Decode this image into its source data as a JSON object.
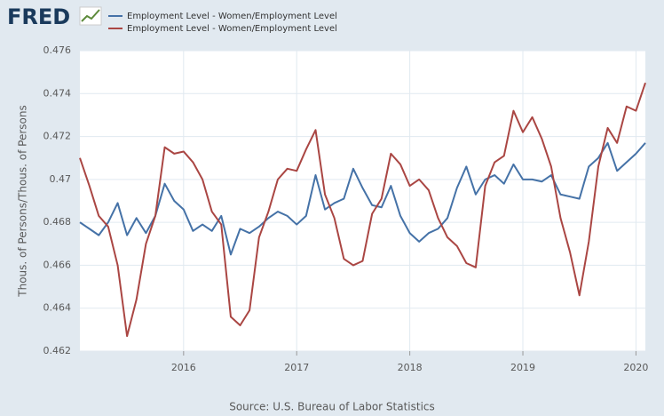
{
  "logo": "FRED",
  "chart_data": {
    "type": "line",
    "y_label": "Thous. of Persons/Thous. of Persons",
    "source": "Source: U.S. Bureau of Labor Statistics",
    "x": [
      2015.083,
      2015.167,
      2015.25,
      2015.333,
      2015.417,
      2015.5,
      2015.583,
      2015.667,
      2015.75,
      2015.833,
      2015.917,
      2016,
      2016.083,
      2016.167,
      2016.25,
      2016.333,
      2016.417,
      2016.5,
      2016.583,
      2016.667,
      2016.75,
      2016.833,
      2016.917,
      2017,
      2017.083,
      2017.167,
      2017.25,
      2017.333,
      2017.417,
      2017.5,
      2017.583,
      2017.667,
      2017.75,
      2017.833,
      2017.917,
      2018,
      2018.083,
      2018.167,
      2018.25,
      2018.333,
      2018.417,
      2018.5,
      2018.583,
      2018.667,
      2018.75,
      2018.833,
      2018.917,
      2019,
      2019.083,
      2019.167,
      2019.25,
      2019.333,
      2019.417,
      2019.5,
      2019.583,
      2019.667,
      2019.75,
      2019.833,
      2019.917,
      2020,
      2020.083
    ],
    "series": [
      {
        "name": "Employment Level - Women/Employment Level",
        "color": "#4572a7",
        "values": [
          0.468,
          0.4677,
          0.4674,
          0.468,
          0.4689,
          0.4674,
          0.4682,
          0.4675,
          0.4683,
          0.4698,
          0.469,
          0.4686,
          0.4676,
          0.4679,
          0.4676,
          0.4683,
          0.4665,
          0.4677,
          0.4675,
          0.4678,
          0.4682,
          0.4685,
          0.4683,
          0.4679,
          0.4683,
          0.4702,
          0.4686,
          0.4689,
          0.4691,
          0.4705,
          0.4696,
          0.4688,
          0.4687,
          0.4697,
          0.4683,
          0.4675,
          0.4671,
          0.4675,
          0.4677,
          0.4682,
          0.4696,
          0.4706,
          0.4693,
          0.47,
          0.4702,
          0.4698,
          0.4707,
          0.47,
          0.47,
          0.4699,
          0.4702,
          0.4693,
          0.4692,
          0.4691,
          0.4706,
          0.471,
          0.4717,
          0.4704,
          0.4708,
          0.4712,
          0.4717
        ]
      },
      {
        "name": "Employment Level - Women/Employment Level",
        "color": "#aa4643",
        "values": [
          0.471,
          0.4697,
          0.4683,
          0.4678,
          0.466,
          0.4627,
          0.4644,
          0.467,
          0.4683,
          0.4715,
          0.4712,
          0.4713,
          0.4708,
          0.47,
          0.4685,
          0.4679,
          0.4636,
          0.4632,
          0.4639,
          0.4673,
          0.4685,
          0.47,
          0.4705,
          0.4704,
          0.4714,
          0.4723,
          0.4693,
          0.4682,
          0.4663,
          0.466,
          0.4662,
          0.4684,
          0.4691,
          0.4712,
          0.4707,
          0.4697,
          0.47,
          0.4695,
          0.4682,
          0.4673,
          0.4669,
          0.4661,
          0.4659,
          0.4697,
          0.4708,
          0.4711,
          0.4732,
          0.4722,
          0.4729,
          0.4719,
          0.4706,
          0.4682,
          0.4666,
          0.4646,
          0.4671,
          0.4706,
          0.4724,
          0.4717,
          0.4734,
          0.4732,
          0.4745
        ]
      }
    ],
    "xlim": [
      2015.083,
      2020.083
    ],
    "xticks": [
      2016,
      2017,
      2018,
      2019,
      2020
    ],
    "ylim": [
      0.462,
      0.476
    ],
    "yticks": [
      0.462,
      0.464,
      0.466,
      0.468,
      0.47,
      0.472,
      0.474,
      0.476
    ],
    "grid": true
  }
}
